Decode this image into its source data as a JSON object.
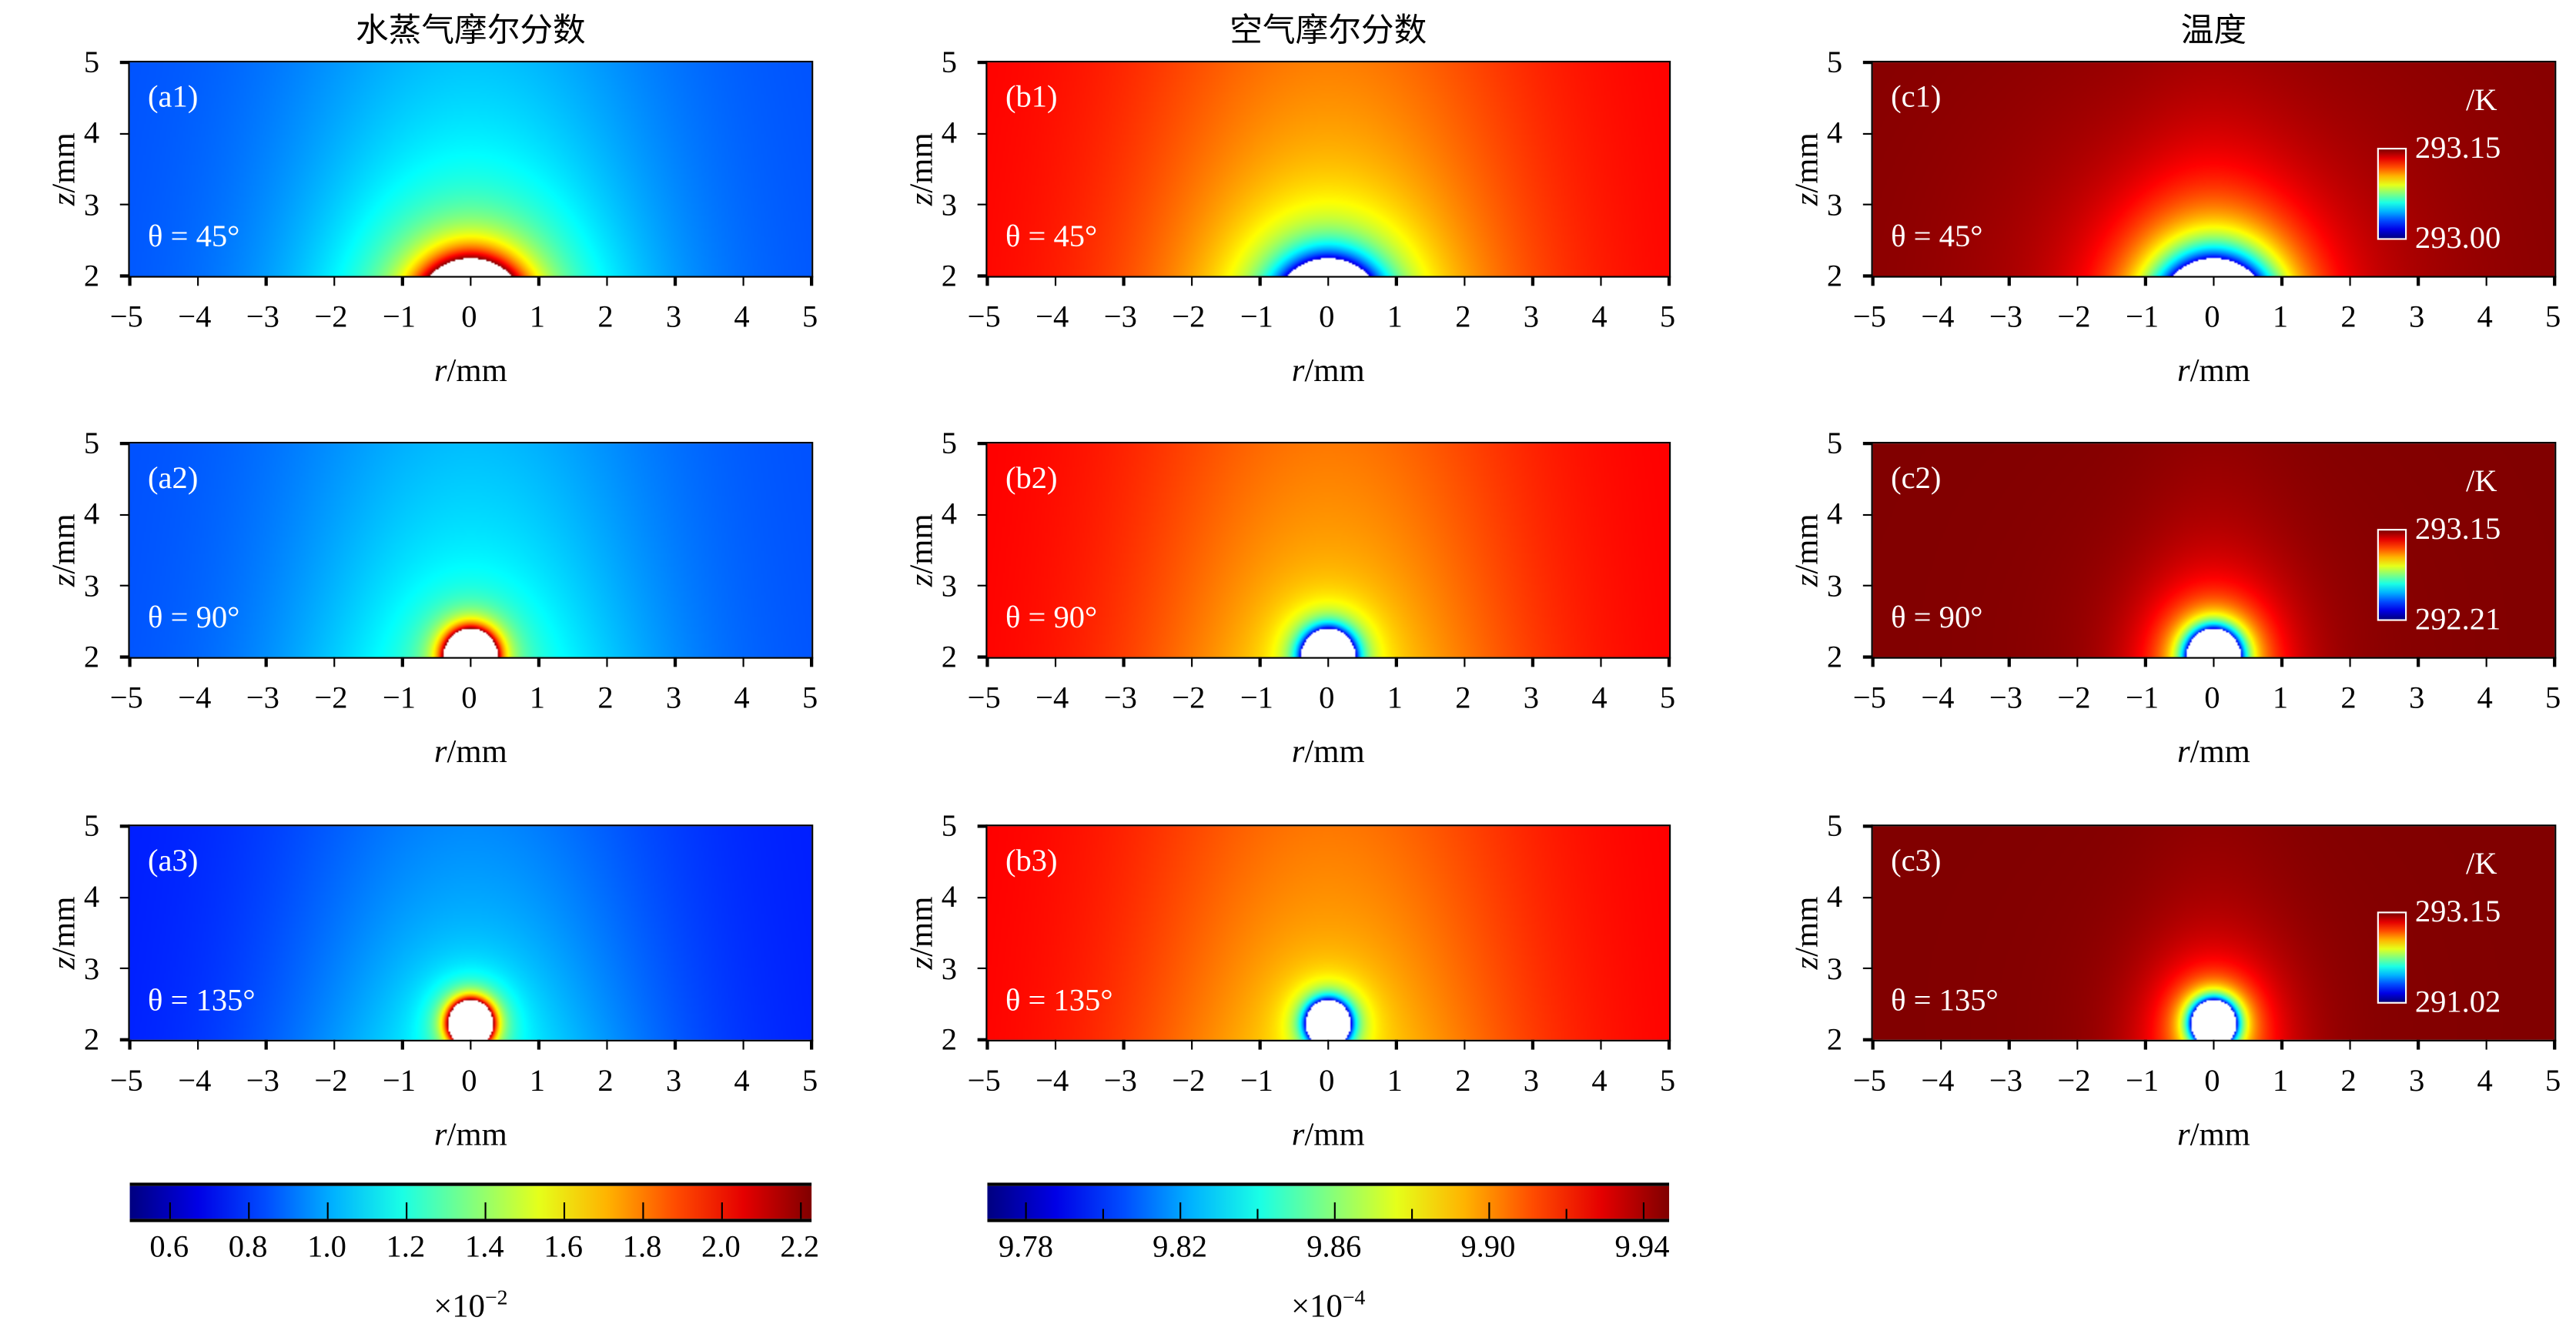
{
  "column_titles": [
    "水蒸气摩尔分数",
    "空气摩尔分数",
    "温度"
  ],
  "colormap": "jet",
  "chart_data": [
    {
      "type": "heatmap",
      "field": "水蒸气摩尔分数",
      "label": "(a1)",
      "annotation": "θ = 45°",
      "contact_angle_deg": 45,
      "xlabel": "r/mm",
      "ylabel": "z/mm",
      "xlim": [
        -5,
        5
      ],
      "ylim": [
        2,
        5
      ]
    },
    {
      "type": "heatmap",
      "field": "空气摩尔分数",
      "label": "(b1)",
      "annotation": "θ = 45°",
      "contact_angle_deg": 45,
      "xlabel": "r/mm",
      "ylabel": "z/mm",
      "xlim": [
        -5,
        5
      ],
      "ylim": [
        2,
        5
      ]
    },
    {
      "type": "heatmap",
      "field": "温度",
      "label": "(c1)",
      "annotation": "θ = 45°",
      "contact_angle_deg": 45,
      "xlabel": "r/mm",
      "ylabel": "z/mm",
      "xlim": [
        -5,
        5
      ],
      "ylim": [
        2,
        5
      ],
      "colorbar": {
        "unit": "/K",
        "max": "293.15",
        "min": "293.00"
      }
    },
    {
      "type": "heatmap",
      "field": "水蒸气摩尔分数",
      "label": "(a2)",
      "annotation": "θ = 90°",
      "contact_angle_deg": 90,
      "xlabel": "r/mm",
      "ylabel": "z/mm",
      "xlim": [
        -5,
        5
      ],
      "ylim": [
        2,
        5
      ]
    },
    {
      "type": "heatmap",
      "field": "空气摩尔分数",
      "label": "(b2)",
      "annotation": "θ = 90°",
      "contact_angle_deg": 90,
      "xlabel": "r/mm",
      "ylabel": "z/mm",
      "xlim": [
        -5,
        5
      ],
      "ylim": [
        2,
        5
      ]
    },
    {
      "type": "heatmap",
      "field": "温度",
      "label": "(c2)",
      "annotation": "θ = 90°",
      "contact_angle_deg": 90,
      "xlabel": "r/mm",
      "ylabel": "z/mm",
      "xlim": [
        -5,
        5
      ],
      "ylim": [
        2,
        5
      ],
      "colorbar": {
        "unit": "/K",
        "max": "293.15",
        "min": "292.21"
      }
    },
    {
      "type": "heatmap",
      "field": "水蒸气摩尔分数",
      "label": "(a3)",
      "annotation": "θ = 135°",
      "contact_angle_deg": 135,
      "xlabel": "r/mm",
      "ylabel": "z/mm",
      "xlim": [
        -5,
        5
      ],
      "ylim": [
        2,
        5
      ]
    },
    {
      "type": "heatmap",
      "field": "空气摩尔分数",
      "label": "(b3)",
      "annotation": "θ = 135°",
      "contact_angle_deg": 135,
      "xlabel": "r/mm",
      "ylabel": "z/mm",
      "xlim": [
        -5,
        5
      ],
      "ylim": [
        2,
        5
      ]
    },
    {
      "type": "heatmap",
      "field": "温度",
      "label": "(c3)",
      "annotation": "θ = 135°",
      "contact_angle_deg": 135,
      "xlabel": "r/mm",
      "ylabel": "z/mm",
      "xlim": [
        -5,
        5
      ],
      "ylim": [
        2,
        5
      ],
      "colorbar": {
        "unit": "/K",
        "max": "293.15",
        "min": "291.02"
      }
    }
  ],
  "x_ticks": [
    "−5",
    "−4",
    "−3",
    "−2",
    "−1",
    "0",
    "1",
    "2",
    "3",
    "4",
    "5"
  ],
  "y_ticks": [
    "2",
    "3",
    "4",
    "5"
  ],
  "shared_colorbars": [
    {
      "range": [
        0.5,
        2.23
      ],
      "ticks": [
        0.6,
        0.8,
        1.0,
        1.2,
        1.4,
        1.6,
        1.8,
        2.0,
        2.2
      ],
      "tick_labels": [
        "0.6",
        "0.8",
        "1.0",
        "1.2",
        "1.4",
        "1.6",
        "1.8",
        "2.0",
        "2.2"
      ],
      "minor_ticks": [],
      "multiplier": "×10",
      "exponent": "−2"
    },
    {
      "range": [
        9.77,
        9.947
      ],
      "ticks": [
        9.78,
        9.82,
        9.86,
        9.9,
        9.94
      ],
      "tick_labels": [
        "9.78",
        "9.82",
        "9.86",
        "9.90",
        "9.94"
      ],
      "minor_ticks": [
        9.8,
        9.84,
        9.88,
        9.92
      ],
      "multiplier": "×10",
      "exponent": "−4"
    }
  ]
}
